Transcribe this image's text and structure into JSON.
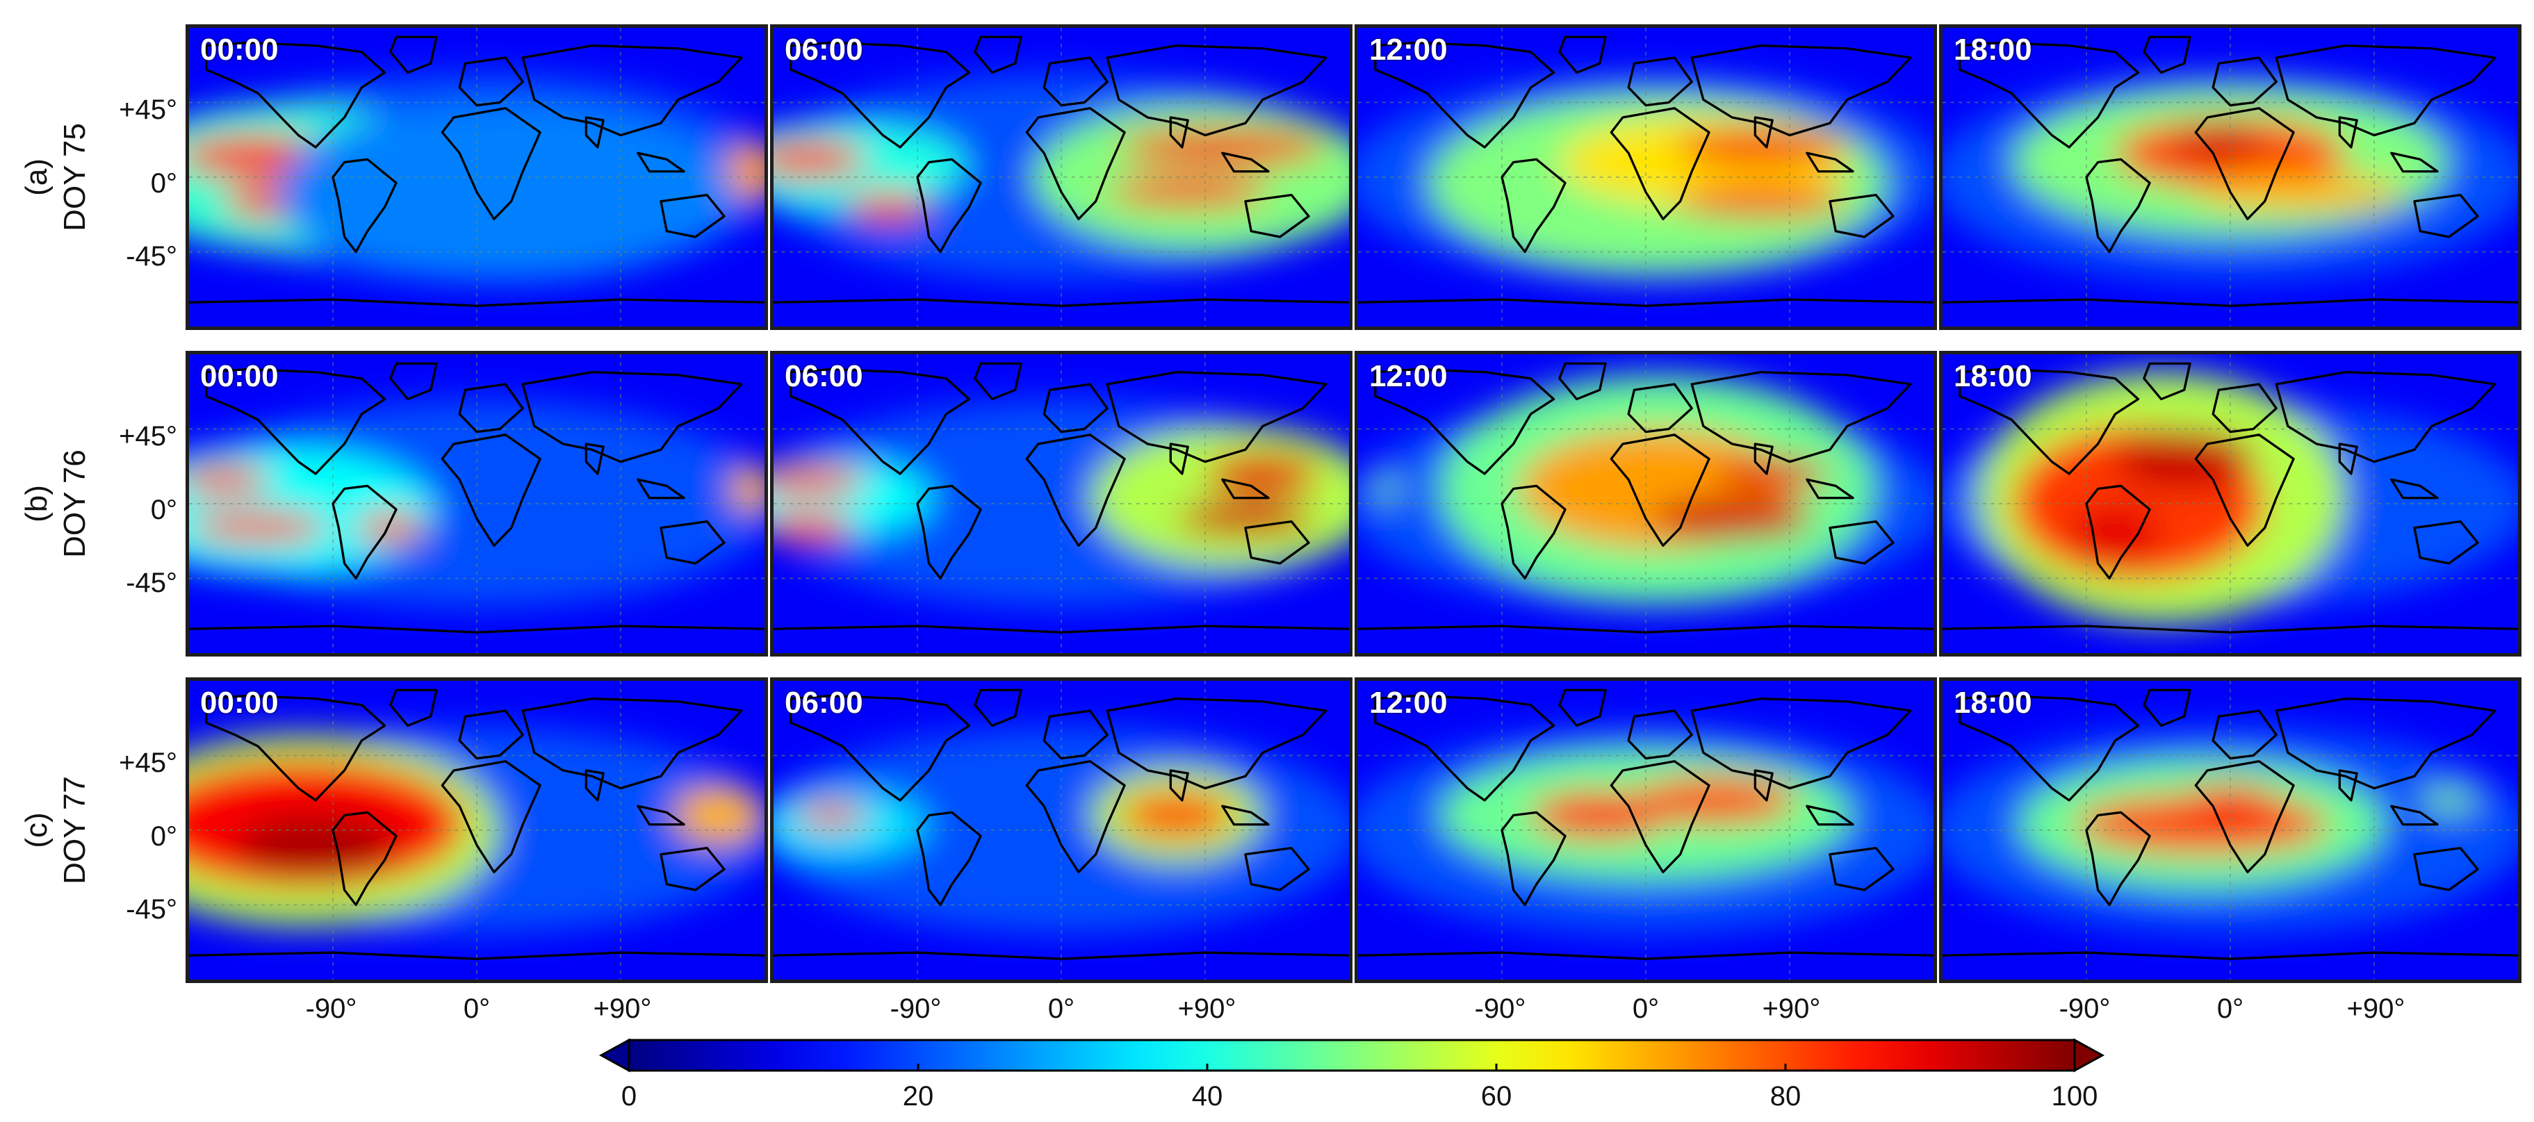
{
  "rows": [
    {
      "label": "(a)",
      "doy": "DOY 75"
    },
    {
      "label": "(b)",
      "doy": "DOY 76"
    },
    {
      "label": "(c)",
      "doy": "DOY 77"
    }
  ],
  "times": [
    "00:00",
    "06:00",
    "12:00",
    "18:00"
  ],
  "latitude_ticks": [
    "+45°",
    "0°",
    "-45°"
  ],
  "longitude_ticks": [
    "-90°",
    "0°",
    "+90°"
  ],
  "colorbar": {
    "ticks": [
      "0",
      "20",
      "40",
      "60",
      "80",
      "100"
    ],
    "range": [
      0,
      100
    ],
    "colormap": "jet",
    "extend": "both"
  },
  "colors": {
    "low": "#00008f",
    "mid_low": "#00a0ff",
    "mid": "#9fff60",
    "mid_high": "#ff7000",
    "high": "#800000",
    "coastline": "#000000"
  }
}
